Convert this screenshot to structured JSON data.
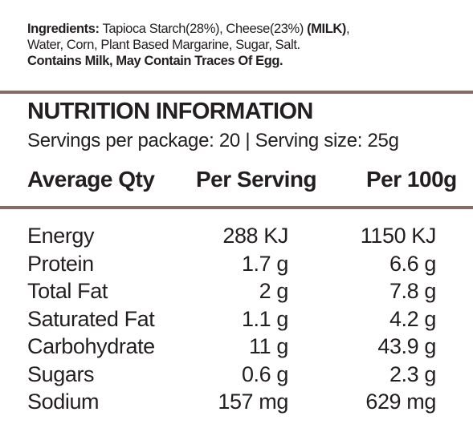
{
  "ingredients": {
    "label": "Ingredients:",
    "line1_text": " Tapioca Starch(28%), Cheese(23%) ",
    "allergen": "(MILK)",
    "line1_end": ",",
    "line2": "Water, Corn, Plant Based Margarine, Sugar, Salt.",
    "contains": "Contains Milk, May Contain Traces Of Egg."
  },
  "nutrition": {
    "title": "NUTRITION INFORMATION",
    "servings": "Servings per package: 20 | Serving size: 25g",
    "headers": [
      "Average Qty",
      "Per Serving",
      "Per 100g"
    ],
    "rows": [
      {
        "name": "Energy",
        "per_serving": "288 KJ",
        "per_100g": "1150 KJ"
      },
      {
        "name": "Protein",
        "per_serving": "1.7 g",
        "per_100g": "6.6 g"
      },
      {
        "name": "Total Fat",
        "per_serving": "2 g",
        "per_100g": "7.8 g"
      },
      {
        "name": "Saturated Fat",
        "per_serving": "1.1 g",
        "per_100g": "4.2 g"
      },
      {
        "name": "Carbohydrate",
        "per_serving": "11 g",
        "per_100g": "43.9 g"
      },
      {
        "name": "Sugars",
        "per_serving": "0.6 g",
        "per_100g": "2.3 g"
      },
      {
        "name": "Sodium",
        "per_serving": "157 mg",
        "per_100g": "629 mg"
      }
    ]
  },
  "colors": {
    "rule": "#8a6a63",
    "text": "#231f20"
  }
}
